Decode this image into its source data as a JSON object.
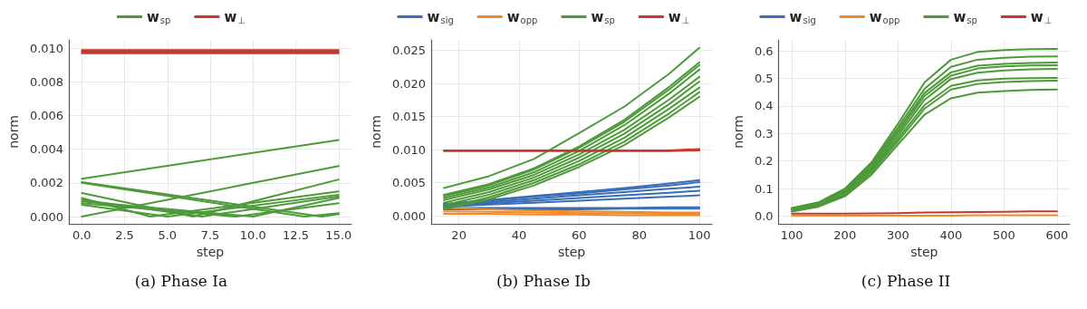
{
  "chart_data": [
    {
      "type": "line",
      "title": "(a) Phase Ia",
      "xlabel": "step",
      "ylabel": "norm",
      "legend": "top",
      "grid": true,
      "marker": "none",
      "line_style": "solid",
      "xlim": [
        -0.75,
        15.75
      ],
      "xticks": [
        {
          "value": 0,
          "label": "0.0"
        },
        {
          "value": 2.5,
          "label": "2.5"
        },
        {
          "value": 5,
          "label": "5.0"
        },
        {
          "value": 7.5,
          "label": "7.5"
        },
        {
          "value": 10,
          "label": "10.0"
        },
        {
          "value": 12.5,
          "label": "12.5"
        },
        {
          "value": 15,
          "label": "15.0"
        }
      ],
      "ylim": [
        -0.00043,
        0.0105
      ],
      "yticks": [
        {
          "value": 0,
          "label": "0.000"
        },
        {
          "value": 0.002,
          "label": "0.002"
        },
        {
          "value": 0.004,
          "label": "0.004"
        },
        {
          "value": 0.006,
          "label": "0.006"
        },
        {
          "value": 0.008,
          "label": "0.008"
        },
        {
          "value": 0.01,
          "label": "0.010"
        }
      ],
      "series": [
        {
          "name": "w$_{sp}$",
          "color": "#4e9a3a",
          "x": [
            0,
            15
          ],
          "values": [
            0.00225,
            0.00455
          ]
        },
        {
          "color": "#4e9a3a",
          "x": [
            0,
            15
          ],
          "values": [
            0,
            0.003
          ]
        },
        {
          "color": "#4e9a3a",
          "x": [
            0,
            14,
            15
          ],
          "values": [
            0.00205,
            0,
            0.00015
          ]
        },
        {
          "color": "#4e9a3a",
          "x": [
            0,
            13,
            15
          ],
          "values": [
            0.002,
            0,
            0.0002
          ]
        },
        {
          "color": "#4e9a3a",
          "x": [
            0,
            6.5,
            15
          ],
          "values": [
            0.0014,
            0,
            0.0022
          ]
        },
        {
          "color": "#4e9a3a",
          "x": [
            0,
            4,
            15
          ],
          "values": [
            0.0011,
            0,
            0.0015
          ]
        },
        {
          "color": "#4e9a3a",
          "x": [
            0,
            7,
            15
          ],
          "values": [
            0.001,
            0,
            0.0012
          ]
        },
        {
          "color": "#4e9a3a",
          "x": [
            0,
            9,
            15
          ],
          "values": [
            0.0008,
            0,
            0.0008
          ]
        },
        {
          "color": "#4e9a3a",
          "x": [
            0,
            5,
            15
          ],
          "values": [
            0.0007,
            0,
            0.0013
          ]
        },
        {
          "color": "#4e9a3a",
          "x": [
            0,
            10,
            15
          ],
          "values": [
            0.0009,
            0,
            0.0011
          ]
        },
        {
          "name": "w$_{⊥}$",
          "color": "#c53a2c",
          "x": [
            0,
            15
          ],
          "values": [
            0.0097,
            0.0097
          ]
        },
        {
          "color": "#c53a2c",
          "x": [
            0,
            15
          ],
          "values": [
            0.0098,
            0.0098
          ]
        },
        {
          "color": "#c53a2c",
          "x": [
            0,
            15
          ],
          "values": [
            0.0099,
            0.0099
          ]
        }
      ]
    },
    {
      "type": "line",
      "title": "(b) Phase Ib",
      "xlabel": "step",
      "ylabel": "norm",
      "legend": "top",
      "grid": true,
      "marker": "none",
      "line_style": "solid",
      "xlim": [
        10.8,
        104.2
      ],
      "xticks": [
        20,
        40,
        60,
        80,
        100
      ],
      "ylim": [
        -0.0012,
        0.0266
      ],
      "yticks": [
        {
          "value": 0,
          "label": "0.000"
        },
        {
          "value": 0.005,
          "label": "0.005"
        },
        {
          "value": 0.01,
          "label": "0.010"
        },
        {
          "value": 0.015,
          "label": "0.015"
        },
        {
          "value": 0.02,
          "label": "0.020"
        },
        {
          "value": 0.025,
          "label": "0.025"
        }
      ],
      "x": [
        15,
        30,
        45,
        60,
        75,
        90,
        100
      ],
      "series": [
        {
          "name": "w$_{sig}$",
          "color": "#3a6db5",
          "values": [
            0.0018,
            0.0024,
            0.003,
            0.0036,
            0.0042,
            0.0049,
            0.0054
          ]
        },
        {
          "color": "#3a6db5",
          "values": [
            0.0017,
            0.0023,
            0.0029,
            0.0034,
            0.004,
            0.0046,
            0.0051
          ]
        },
        {
          "color": "#3a6db5",
          "values": [
            0.0016,
            0.0021,
            0.0026,
            0.0031,
            0.0036,
            0.0041,
            0.0044
          ]
        },
        {
          "color": "#3a6db5",
          "values": [
            0.0015,
            0.0019,
            0.0023,
            0.0027,
            0.0031,
            0.0035,
            0.0038
          ]
        },
        {
          "color": "#3a6db5",
          "values": [
            0.0014,
            0.0017,
            0.002,
            0.0023,
            0.0026,
            0.0029,
            0.0031
          ]
        },
        {
          "color": "#3a6db5",
          "values": [
            0.0012,
            0.0012,
            0.0012,
            0.0012,
            0.0012,
            0.0013,
            0.0013
          ]
        },
        {
          "color": "#3a6db5",
          "values": [
            0.001,
            0.001,
            0.001,
            0.001,
            0.0011,
            0.0011,
            0.0011
          ]
        },
        {
          "name": "w$_{opp}$",
          "color": "#f08a2a",
          "values": [
            0.0012,
            0.001,
            0.0008,
            0.0007,
            0.0006,
            0.0005,
            0.0005
          ]
        },
        {
          "color": "#f08a2a",
          "values": [
            0.0007,
            0.0006,
            0.0005,
            0.0004,
            0.0004,
            0.0003,
            0.0003
          ]
        },
        {
          "color": "#f08a2a",
          "values": [
            0.0003,
            0.0003,
            0.0002,
            0.0002,
            0.0001,
            0.0001,
            0.0001
          ]
        },
        {
          "name": "w$_{sp}$",
          "color": "#4e9a3a",
          "values": [
            0.0042,
            0.006,
            0.0086,
            0.0125,
            0.0165,
            0.0215,
            0.0254
          ]
        },
        {
          "color": "#4e9a3a",
          "values": [
            0.0032,
            0.0048,
            0.0072,
            0.0105,
            0.0145,
            0.0195,
            0.0232
          ]
        },
        {
          "color": "#4e9a3a",
          "values": [
            0.003,
            0.0046,
            0.007,
            0.0103,
            0.0142,
            0.0191,
            0.0228
          ]
        },
        {
          "color": "#4e9a3a",
          "values": [
            0.0027,
            0.0043,
            0.0066,
            0.0098,
            0.0137,
            0.0185,
            0.0221
          ]
        },
        {
          "color": "#4e9a3a",
          "values": [
            0.0024,
            0.004,
            0.0062,
            0.0093,
            0.013,
            0.0176,
            0.021
          ]
        },
        {
          "color": "#4e9a3a",
          "values": [
            0.002,
            0.0036,
            0.0058,
            0.0088,
            0.0124,
            0.0169,
            0.0203
          ]
        },
        {
          "color": "#4e9a3a",
          "values": [
            0.0016,
            0.0032,
            0.0054,
            0.0083,
            0.0118,
            0.0162,
            0.0194
          ]
        },
        {
          "color": "#4e9a3a",
          "values": [
            0.0012,
            0.0028,
            0.005,
            0.0078,
            0.0112,
            0.0155,
            0.0187
          ]
        },
        {
          "color": "#4e9a3a",
          "values": [
            0.001,
            0.0025,
            0.0046,
            0.0074,
            0.0107,
            0.0149,
            0.018
          ]
        },
        {
          "name": "w$_{⊥}$",
          "color": "#c53a2c",
          "values": [
            0.0099,
            0.0099,
            0.0099,
            0.0099,
            0.0099,
            0.0099,
            0.0101
          ]
        },
        {
          "color": "#c53a2c",
          "values": [
            0.0098,
            0.0098,
            0.0098,
            0.0098,
            0.0098,
            0.0098,
            0.0099
          ]
        }
      ]
    },
    {
      "type": "line",
      "title": "(c) Phase II",
      "xlabel": "step",
      "ylabel": "norm",
      "legend": "top",
      "grid": true,
      "marker": "none",
      "line_style": "solid",
      "xlim": [
        75,
        624
      ],
      "xticks": [
        100,
        200,
        300,
        400,
        500,
        600
      ],
      "ylim": [
        -0.028,
        0.64
      ],
      "yticks": [
        {
          "value": 0,
          "label": "0.0"
        },
        {
          "value": 0.1,
          "label": "0.1"
        },
        {
          "value": 0.2,
          "label": "0.2"
        },
        {
          "value": 0.3,
          "label": "0.3"
        },
        {
          "value": 0.4,
          "label": "0.4"
        },
        {
          "value": 0.5,
          "label": "0.5"
        },
        {
          "value": 0.6,
          "label": "0.6"
        }
      ],
      "x": [
        100,
        150,
        200,
        250,
        300,
        350,
        400,
        450,
        500,
        550,
        600
      ],
      "series": [
        {
          "name": "w$_{sig}$",
          "color": "#3a6db5",
          "values": [
            null,
            null,
            null,
            null,
            null,
            null,
            null,
            null,
            null,
            null,
            null
          ]
        },
        {
          "name": "w$_{opp}$",
          "color": "#f08a2a",
          "values": [
            0.002,
            0.002,
            0.002,
            0.002,
            0.002,
            0.002,
            0.002,
            0.003,
            0.003,
            0.003,
            0.003
          ]
        },
        {
          "name": "w$_{sp}$",
          "color": "#4e9a3a",
          "values": [
            0.03,
            0.05,
            0.1,
            0.195,
            0.335,
            0.485,
            0.568,
            0.596,
            0.603,
            0.606,
            0.607
          ]
        },
        {
          "color": "#4e9a3a",
          "values": [
            0.028,
            0.047,
            0.096,
            0.188,
            0.322,
            0.462,
            0.542,
            0.568,
            0.575,
            0.579,
            0.58
          ]
        },
        {
          "color": "#4e9a3a",
          "values": [
            0.026,
            0.045,
            0.092,
            0.182,
            0.312,
            0.447,
            0.522,
            0.546,
            0.553,
            0.556,
            0.558
          ]
        },
        {
          "color": "#4e9a3a",
          "values": [
            0.024,
            0.043,
            0.088,
            0.176,
            0.302,
            0.436,
            0.51,
            0.536,
            0.544,
            0.547,
            0.548
          ]
        },
        {
          "color": "#4e9a3a",
          "values": [
            0.022,
            0.041,
            0.084,
            0.17,
            0.292,
            0.422,
            0.498,
            0.521,
            0.529,
            0.533,
            0.535
          ]
        },
        {
          "color": "#4e9a3a",
          "values": [
            0.02,
            0.039,
            0.08,
            0.164,
            0.282,
            0.403,
            0.473,
            0.493,
            0.499,
            0.501,
            0.502
          ]
        },
        {
          "color": "#4e9a3a",
          "values": [
            0.018,
            0.036,
            0.076,
            0.158,
            0.272,
            0.39,
            0.46,
            0.48,
            0.487,
            0.49,
            0.492
          ]
        },
        {
          "color": "#4e9a3a",
          "values": [
            0.016,
            0.034,
            0.072,
            0.15,
            0.26,
            0.368,
            0.428,
            0.448,
            0.454,
            0.458,
            0.46
          ]
        },
        {
          "name": "w$_{⊥}$",
          "color": "#c53a2c",
          "values": [
            0.009,
            0.009,
            0.009,
            0.01,
            0.011,
            0.013,
            0.014,
            0.015,
            0.016,
            0.017,
            0.017
          ]
        }
      ]
    }
  ]
}
